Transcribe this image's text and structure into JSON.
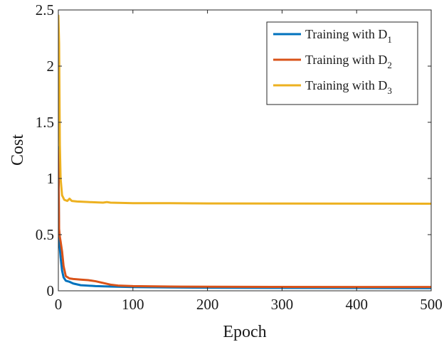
{
  "chart_data": {
    "type": "line",
    "title": "",
    "xlabel": "Epoch",
    "ylabel": "Cost",
    "xlim": [
      0,
      500
    ],
    "ylim": [
      0,
      2.5
    ],
    "xticks": [
      0,
      100,
      200,
      300,
      400,
      500
    ],
    "yticks": [
      0,
      0.5,
      1,
      1.5,
      2,
      2.5
    ],
    "xtick_labels": [
      "0",
      "100",
      "200",
      "300",
      "400",
      "500"
    ],
    "ytick_labels": [
      "0",
      "0.5",
      "1",
      "1.5",
      "2",
      "2.5"
    ],
    "grid": false,
    "legend": {
      "position": "top-right",
      "entries": [
        {
          "label": "Training with D",
          "subscript": "1"
        },
        {
          "label": "Training with D",
          "subscript": "2"
        },
        {
          "label": "Training with D",
          "subscript": "3"
        }
      ]
    },
    "series": [
      {
        "name": "Training with D1",
        "color": "#0072BD",
        "points": [
          [
            0,
            1.28
          ],
          [
            1,
            0.45
          ],
          [
            2,
            0.38
          ],
          [
            3,
            0.3
          ],
          [
            5,
            0.18
          ],
          [
            7,
            0.12
          ],
          [
            10,
            0.09
          ],
          [
            15,
            0.08
          ],
          [
            20,
            0.065
          ],
          [
            30,
            0.05
          ],
          [
            50,
            0.042
          ],
          [
            70,
            0.038
          ],
          [
            100,
            0.033
          ],
          [
            150,
            0.03
          ],
          [
            200,
            0.028
          ],
          [
            300,
            0.026
          ],
          [
            400,
            0.025
          ],
          [
            500,
            0.024
          ]
        ]
      },
      {
        "name": "Training with D2",
        "color": "#D95319",
        "points": [
          [
            0,
            1.25
          ],
          [
            1,
            0.55
          ],
          [
            2,
            0.48
          ],
          [
            3,
            0.44
          ],
          [
            5,
            0.35
          ],
          [
            7,
            0.22
          ],
          [
            10,
            0.13
          ],
          [
            15,
            0.11
          ],
          [
            20,
            0.105
          ],
          [
            30,
            0.1
          ],
          [
            40,
            0.095
          ],
          [
            50,
            0.085
          ],
          [
            60,
            0.07
          ],
          [
            70,
            0.055
          ],
          [
            80,
            0.047
          ],
          [
            100,
            0.042
          ],
          [
            150,
            0.038
          ],
          [
            200,
            0.036
          ],
          [
            300,
            0.035
          ],
          [
            400,
            0.034
          ],
          [
            500,
            0.034
          ]
        ]
      },
      {
        "name": "Training with D3",
        "color": "#EDB120",
        "points": [
          [
            0,
            2.45
          ],
          [
            1,
            2.2
          ],
          [
            2,
            1.3
          ],
          [
            3,
            1.0
          ],
          [
            5,
            0.85
          ],
          [
            8,
            0.81
          ],
          [
            12,
            0.8
          ],
          [
            15,
            0.82
          ],
          [
            18,
            0.8
          ],
          [
            25,
            0.795
          ],
          [
            40,
            0.79
          ],
          [
            60,
            0.785
          ],
          [
            65,
            0.79
          ],
          [
            70,
            0.785
          ],
          [
            100,
            0.78
          ],
          [
            150,
            0.78
          ],
          [
            200,
            0.778
          ],
          [
            300,
            0.777
          ],
          [
            400,
            0.776
          ],
          [
            500,
            0.775
          ]
        ]
      }
    ]
  }
}
